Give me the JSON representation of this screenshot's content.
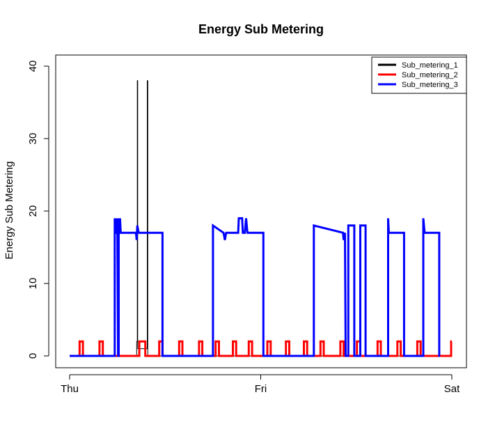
{
  "chart_data": {
    "type": "line",
    "title": "Energy Sub Metering",
    "xlabel": "",
    "ylabel": "Energy Sub Metering",
    "x_ticks": [
      {
        "label": "Thu",
        "value": 0
      },
      {
        "label": "Fri",
        "value": 1440
      },
      {
        "label": "Sat",
        "value": 2880
      }
    ],
    "x_unit": "minutes since Thu 00:00",
    "xlim": [
      0,
      2880
    ],
    "ylim": [
      0,
      40
    ],
    "y_ticks": [
      0,
      10,
      20,
      30,
      40
    ],
    "grid": false,
    "legend_position": "top-right",
    "series": [
      {
        "name": "Sub_metering_1",
        "color": "#000000",
        "points": [
          [
            0,
            0
          ],
          [
            505,
            0
          ],
          [
            505,
            2
          ],
          [
            510,
            2
          ],
          [
            510,
            38
          ],
          [
            513,
            38
          ],
          [
            513,
            1
          ],
          [
            585,
            1
          ],
          [
            585,
            38
          ],
          [
            589,
            38
          ],
          [
            589,
            0
          ],
          [
            2880,
            0
          ]
        ]
      },
      {
        "name": "Sub_metering_2",
        "color": "#ff0000",
        "points": [
          [
            0,
            0
          ],
          [
            75,
            0
          ],
          [
            75,
            2
          ],
          [
            100,
            2
          ],
          [
            100,
            0
          ],
          [
            225,
            0
          ],
          [
            225,
            2
          ],
          [
            250,
            2
          ],
          [
            250,
            0
          ],
          [
            525,
            0
          ],
          [
            525,
            2
          ],
          [
            570,
            2
          ],
          [
            570,
            0
          ],
          [
            675,
            0
          ],
          [
            675,
            2
          ],
          [
            700,
            2
          ],
          [
            700,
            0
          ],
          [
            825,
            0
          ],
          [
            825,
            2
          ],
          [
            850,
            2
          ],
          [
            850,
            0
          ],
          [
            975,
            0
          ],
          [
            975,
            2
          ],
          [
            1000,
            2
          ],
          [
            1000,
            0
          ],
          [
            1100,
            0
          ],
          [
            1100,
            2
          ],
          [
            1125,
            2
          ],
          [
            1125,
            0
          ],
          [
            1230,
            0
          ],
          [
            1230,
            2
          ],
          [
            1255,
            2
          ],
          [
            1255,
            0
          ],
          [
            1350,
            0
          ],
          [
            1350,
            2
          ],
          [
            1375,
            2
          ],
          [
            1375,
            0
          ],
          [
            1490,
            0
          ],
          [
            1490,
            2
          ],
          [
            1515,
            2
          ],
          [
            1515,
            0
          ],
          [
            1630,
            0
          ],
          [
            1630,
            2
          ],
          [
            1655,
            2
          ],
          [
            1655,
            0
          ],
          [
            1765,
            0
          ],
          [
            1765,
            2
          ],
          [
            1790,
            2
          ],
          [
            1790,
            0
          ],
          [
            1890,
            0
          ],
          [
            1890,
            2
          ],
          [
            1915,
            2
          ],
          [
            1915,
            0
          ],
          [
            2040,
            0
          ],
          [
            2040,
            2
          ],
          [
            2065,
            2
          ],
          [
            2065,
            0
          ],
          [
            2165,
            0
          ],
          [
            2165,
            2
          ],
          [
            2190,
            2
          ],
          [
            2190,
            0
          ],
          [
            2320,
            0
          ],
          [
            2320,
            2
          ],
          [
            2345,
            2
          ],
          [
            2345,
            0
          ],
          [
            2470,
            0
          ],
          [
            2470,
            2
          ],
          [
            2495,
            2
          ],
          [
            2495,
            0
          ],
          [
            2620,
            0
          ],
          [
            2620,
            2
          ],
          [
            2645,
            2
          ],
          [
            2645,
            0
          ],
          [
            2875,
            0
          ],
          [
            2875,
            2
          ],
          [
            2880,
            2
          ]
        ]
      },
      {
        "name": "Sub_metering_3",
        "color": "#0000ff",
        "points": [
          [
            0,
            0
          ],
          [
            340,
            0
          ],
          [
            340,
            19
          ],
          [
            345,
            17
          ],
          [
            355,
            17
          ],
          [
            355,
            19
          ],
          [
            360,
            17
          ],
          [
            365,
            0
          ],
          [
            370,
            0
          ],
          [
            370,
            19
          ],
          [
            375,
            17
          ],
          [
            380,
            19
          ],
          [
            385,
            17
          ],
          [
            500,
            17
          ],
          [
            505,
            16
          ],
          [
            510,
            18
          ],
          [
            520,
            17
          ],
          [
            700,
            17
          ],
          [
            700,
            0
          ],
          [
            1080,
            0
          ],
          [
            1080,
            18
          ],
          [
            1160,
            17
          ],
          [
            1170,
            16
          ],
          [
            1180,
            17
          ],
          [
            1270,
            17
          ],
          [
            1275,
            19
          ],
          [
            1300,
            19
          ],
          [
            1305,
            17
          ],
          [
            1320,
            17
          ],
          [
            1330,
            19
          ],
          [
            1340,
            17
          ],
          [
            1460,
            17
          ],
          [
            1460,
            0
          ],
          [
            1840,
            0
          ],
          [
            1840,
            18
          ],
          [
            2060,
            17
          ],
          [
            2065,
            16
          ],
          [
            2075,
            17
          ],
          [
            2080,
            0
          ],
          [
            2100,
            0
          ],
          [
            2100,
            18
          ],
          [
            2145,
            18
          ],
          [
            2145,
            0
          ],
          [
            2190,
            0
          ],
          [
            2190,
            18
          ],
          [
            2230,
            18
          ],
          [
            2230,
            0
          ],
          [
            2400,
            0
          ],
          [
            2400,
            19
          ],
          [
            2405,
            17
          ],
          [
            2520,
            17
          ],
          [
            2520,
            0
          ],
          [
            2665,
            0
          ],
          [
            2665,
            19
          ],
          [
            2675,
            17
          ],
          [
            2785,
            17
          ],
          [
            2785,
            0
          ],
          [
            2790,
            0
          ]
        ]
      }
    ]
  }
}
